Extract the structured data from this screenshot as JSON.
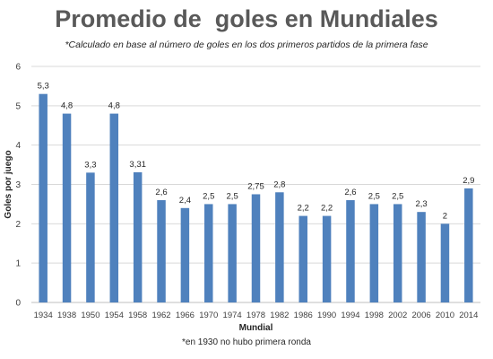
{
  "chart_data": {
    "type": "bar",
    "title": "Promedio de  goles en Mundiales",
    "subtitle": "*Calculado en base al número de goles en los dos primeros  partidos de la primera  fase",
    "xlabel": "Mundial",
    "ylabel": "Goles por juego",
    "footnote": "*en 1930 no hubo primera ronda",
    "ylim": [
      0,
      6
    ],
    "yticks": [
      "0",
      "1",
      "2",
      "3",
      "4",
      "5",
      "6"
    ],
    "grid": true,
    "bar_color": "#4f81bd",
    "categories": [
      "1934",
      "1938",
      "1950",
      "1954",
      "1958",
      "1962",
      "1966",
      "1970",
      "1974",
      "1978",
      "1982",
      "1986",
      "1990",
      "1994",
      "1998",
      "2002",
      "2006",
      "2010",
      "2014"
    ],
    "values": [
      5.3,
      4.8,
      3.3,
      4.8,
      3.31,
      2.6,
      2.4,
      2.5,
      2.5,
      2.75,
      2.8,
      2.2,
      2.2,
      2.6,
      2.5,
      2.5,
      2.3,
      2,
      2.9
    ],
    "data_labels": [
      "5,3",
      "4,8",
      "3,3",
      "4,8",
      "3,31",
      "2,6",
      "2,4",
      "2,5",
      "2,5",
      "2,75",
      "2,8",
      "2,2",
      "2,2",
      "2,6",
      "2,5",
      "2,5",
      "2,3",
      "2",
      "2,9"
    ]
  }
}
